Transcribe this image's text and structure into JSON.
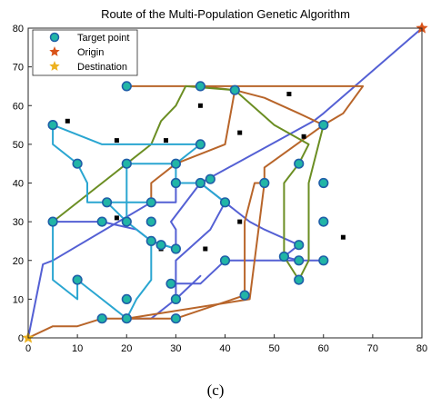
{
  "chart_data": {
    "type": "line",
    "title": "Route of the Multi-Population Genetic Algorithm",
    "caption": "(c)",
    "xlim": [
      0,
      80
    ],
    "ylim": [
      0,
      80
    ],
    "xticks": [
      "0",
      "10",
      "20",
      "30",
      "40",
      "50",
      "60",
      "70",
      "80"
    ],
    "yticks": [
      "0",
      "10",
      "20",
      "30",
      "40",
      "50",
      "60",
      "70",
      "80"
    ],
    "grid": false,
    "legend_position": "top-left",
    "legend": [
      {
        "label": "Target point",
        "marker": "target"
      },
      {
        "label": "Origin",
        "marker": "origin-star"
      },
      {
        "label": "Destination",
        "marker": "destination-star"
      }
    ],
    "colors": {
      "target_fill": "#21b5a6",
      "target_edge": "#1f5fa8",
      "origin": "#d95319",
      "destination": "#edb120",
      "route_brown": "#b8652a",
      "route_olive": "#6b8e23",
      "route_cyan": "#2aa6d1",
      "route_blue": "#5460d4"
    },
    "origin": {
      "x": 80,
      "y": 80
    },
    "destination": {
      "x": 0,
      "y": 0
    },
    "target_points": [
      {
        "x": 5,
        "y": 55
      },
      {
        "x": 20,
        "y": 65
      },
      {
        "x": 35,
        "y": 65
      },
      {
        "x": 42,
        "y": 64
      },
      {
        "x": 10,
        "y": 45
      },
      {
        "x": 20,
        "y": 45
      },
      {
        "x": 30,
        "y": 45
      },
      {
        "x": 35,
        "y": 50
      },
      {
        "x": 60,
        "y": 55
      },
      {
        "x": 5,
        "y": 30
      },
      {
        "x": 16,
        "y": 35
      },
      {
        "x": 25,
        "y": 35
      },
      {
        "x": 15,
        "y": 30
      },
      {
        "x": 20,
        "y": 30
      },
      {
        "x": 25,
        "y": 30
      },
      {
        "x": 30,
        "y": 40
      },
      {
        "x": 35,
        "y": 40
      },
      {
        "x": 37,
        "y": 41
      },
      {
        "x": 48,
        "y": 40
      },
      {
        "x": 40,
        "y": 35
      },
      {
        "x": 55,
        "y": 45
      },
      {
        "x": 60,
        "y": 40
      },
      {
        "x": 60,
        "y": 30
      },
      {
        "x": 25,
        "y": 25
      },
      {
        "x": 30,
        "y": 23
      },
      {
        "x": 27,
        "y": 24
      },
      {
        "x": 55,
        "y": 24
      },
      {
        "x": 52,
        "y": 21
      },
      {
        "x": 55,
        "y": 20
      },
      {
        "x": 60,
        "y": 20
      },
      {
        "x": 40,
        "y": 20
      },
      {
        "x": 29,
        "y": 14
      },
      {
        "x": 30,
        "y": 10
      },
      {
        "x": 44,
        "y": 11
      },
      {
        "x": 55,
        "y": 15
      },
      {
        "x": 10,
        "y": 15
      },
      {
        "x": 20,
        "y": 10
      },
      {
        "x": 15,
        "y": 5
      },
      {
        "x": 20,
        "y": 5
      },
      {
        "x": 30,
        "y": 5
      }
    ],
    "obstacles": [
      {
        "x": 8,
        "y": 56
      },
      {
        "x": 35,
        "y": 60
      },
      {
        "x": 53,
        "y": 63
      },
      {
        "x": 18,
        "y": 51
      },
      {
        "x": 28,
        "y": 51
      },
      {
        "x": 43,
        "y": 53
      },
      {
        "x": 56,
        "y": 52
      },
      {
        "x": 18,
        "y": 31
      },
      {
        "x": 43,
        "y": 30
      },
      {
        "x": 64,
        "y": 26
      },
      {
        "x": 27,
        "y": 23
      },
      {
        "x": 36,
        "y": 23
      }
    ],
    "series": [
      {
        "color": "route_blue",
        "points": [
          [
            80,
            80
          ],
          [
            60,
            58
          ],
          [
            58,
            56
          ],
          [
            35,
            40
          ],
          [
            30,
            40
          ],
          [
            30,
            35
          ],
          [
            25,
            35
          ],
          [
            5,
            20
          ],
          [
            3,
            19
          ],
          [
            0,
            0
          ]
        ]
      },
      {
        "color": "route_blue",
        "points": [
          [
            35,
            40
          ],
          [
            45,
            30
          ],
          [
            48,
            28
          ],
          [
            55,
            24
          ],
          [
            52,
            21
          ],
          [
            55,
            20
          ],
          [
            60,
            20
          ]
        ]
      },
      {
        "color": "route_blue",
        "points": [
          [
            35,
            40
          ],
          [
            29,
            30
          ],
          [
            30,
            28
          ],
          [
            30,
            23
          ],
          [
            25,
            25
          ],
          [
            22,
            28
          ],
          [
            15,
            30
          ],
          [
            5,
            30
          ]
        ]
      },
      {
        "color": "route_blue",
        "points": [
          [
            55,
            20
          ],
          [
            40,
            20
          ],
          [
            35,
            14
          ],
          [
            30,
            14
          ],
          [
            30,
            10
          ],
          [
            35,
            16
          ],
          [
            30,
            10
          ],
          [
            25,
            5
          ],
          [
            20,
            5
          ]
        ]
      },
      {
        "color": "route_blue",
        "points": [
          [
            40,
            35
          ],
          [
            37,
            28
          ],
          [
            30,
            20
          ],
          [
            30,
            14
          ]
        ]
      },
      {
        "color": "route_brown",
        "points": [
          [
            20,
            65
          ],
          [
            35,
            65
          ],
          [
            42,
            64
          ],
          [
            48,
            62
          ],
          [
            55,
            58
          ],
          [
            60,
            55
          ],
          [
            64,
            58
          ],
          [
            68,
            65
          ],
          [
            20,
            65
          ]
        ]
      },
      {
        "color": "route_brown",
        "points": [
          [
            42,
            64
          ],
          [
            40,
            50
          ],
          [
            30,
            45
          ],
          [
            25,
            40
          ],
          [
            25,
            35
          ]
        ]
      },
      {
        "color": "route_brown",
        "points": [
          [
            60,
            55
          ],
          [
            48,
            44
          ],
          [
            48,
            40
          ],
          [
            46,
            40
          ],
          [
            44,
            30
          ],
          [
            44,
            11
          ],
          [
            30,
            5
          ],
          [
            20,
            5
          ],
          [
            15,
            5
          ],
          [
            10,
            3
          ],
          [
            5,
            3
          ],
          [
            0,
            0
          ]
        ]
      },
      {
        "color": "route_brown",
        "points": [
          [
            48,
            40
          ],
          [
            46,
            20
          ],
          [
            45,
            10
          ],
          [
            20,
            5
          ]
        ]
      },
      {
        "color": "route_olive",
        "points": [
          [
            5,
            30
          ],
          [
            20,
            45
          ],
          [
            25,
            50
          ],
          [
            27,
            56
          ],
          [
            30,
            60
          ],
          [
            32,
            65
          ],
          [
            42,
            64
          ],
          [
            50,
            55
          ],
          [
            57,
            50
          ],
          [
            55,
            45
          ],
          [
            52,
            40
          ],
          [
            52,
            21
          ],
          [
            55,
            15
          ],
          [
            57,
            20
          ],
          [
            57,
            40
          ],
          [
            60,
            55
          ]
        ]
      },
      {
        "color": "route_cyan",
        "points": [
          [
            5,
            55
          ],
          [
            5,
            50
          ],
          [
            10,
            45
          ],
          [
            12,
            40
          ],
          [
            12,
            35
          ],
          [
            16,
            35
          ],
          [
            20,
            35
          ],
          [
            25,
            35
          ]
        ]
      },
      {
        "color": "route_cyan",
        "points": [
          [
            5,
            55
          ],
          [
            15,
            50
          ],
          [
            20,
            50
          ],
          [
            25,
            50
          ],
          [
            30,
            50
          ],
          [
            35,
            50
          ],
          [
            30,
            45
          ],
          [
            25,
            45
          ],
          [
            20,
            45
          ],
          [
            20,
            40
          ],
          [
            20,
            30
          ],
          [
            25,
            25
          ],
          [
            30,
            23
          ]
        ]
      },
      {
        "color": "route_cyan",
        "points": [
          [
            30,
            45
          ],
          [
            30,
            40
          ],
          [
            35,
            40
          ],
          [
            40,
            35
          ]
        ]
      },
      {
        "color": "route_cyan",
        "points": [
          [
            5,
            30
          ],
          [
            5,
            20
          ],
          [
            5,
            15
          ],
          [
            10,
            10
          ],
          [
            10,
            15
          ],
          [
            15,
            10
          ],
          [
            20,
            5
          ],
          [
            22,
            10
          ],
          [
            25,
            15
          ],
          [
            25,
            25
          ]
        ]
      },
      {
        "color": "route_cyan",
        "points": [
          [
            20,
            30
          ],
          [
            16,
            35
          ]
        ]
      }
    ]
  }
}
